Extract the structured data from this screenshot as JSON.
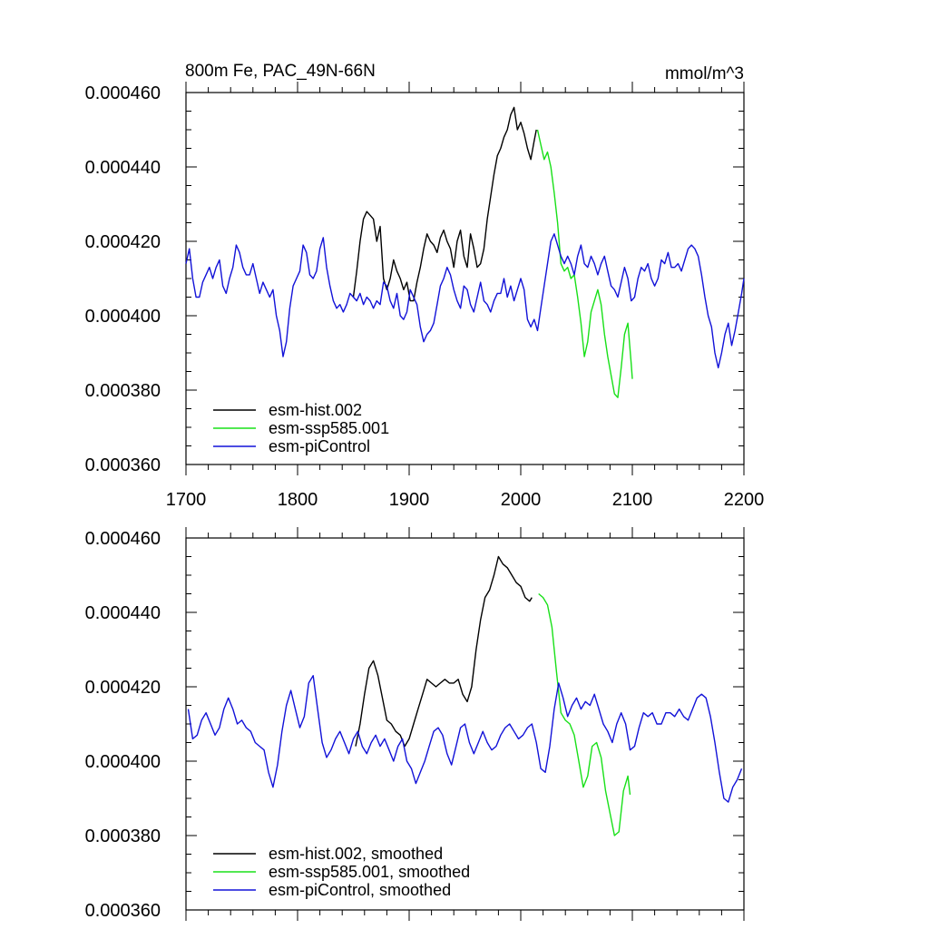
{
  "title": "800m Fe, PAC_49N-66N",
  "units": "mmol/m^3",
  "colors": {
    "hist": "#000000",
    "ssp": "#18e018",
    "pi": "#1212d8"
  },
  "chart_data": [
    {
      "type": "line",
      "panel": "top",
      "xlim": [
        1700,
        2200
      ],
      "ylim": [
        0.00036,
        0.00046
      ],
      "x_ticks": [
        "1700",
        "1800",
        "1900",
        "2000",
        "2100",
        "2200"
      ],
      "y_ticks": [
        "0.000360",
        "0.000380",
        "0.000400",
        "0.000420",
        "0.000440",
        "0.000460"
      ],
      "legend_position": "bottom-left",
      "series": [
        {
          "name": "esm-hist.002",
          "key": "hist",
          "x": [
            1850,
            1853,
            1856,
            1859,
            1862,
            1865,
            1868,
            1871,
            1874,
            1877,
            1880,
            1883,
            1886,
            1889,
            1892,
            1895,
            1898,
            1901,
            1904,
            1907,
            1910,
            1913,
            1916,
            1919,
            1922,
            1925,
            1928,
            1931,
            1934,
            1937,
            1940,
            1943,
            1946,
            1949,
            1952,
            1955,
            1958,
            1961,
            1964,
            1967,
            1970,
            1973,
            1976,
            1979,
            1982,
            1985,
            1988,
            1991,
            1994,
            1997,
            2000,
            2003,
            2006,
            2009,
            2012,
            2014
          ],
          "values": [
            0.000405,
            0.000412,
            0.00042,
            0.000426,
            0.000428,
            0.000427,
            0.000426,
            0.00042,
            0.000424,
            0.00041,
            0.000407,
            0.00041,
            0.000415,
            0.000412,
            0.00041,
            0.000407,
            0.000409,
            0.000404,
            0.000404,
            0.000409,
            0.000413,
            0.000418,
            0.000422,
            0.00042,
            0.000419,
            0.000417,
            0.000421,
            0.000423,
            0.00042,
            0.000418,
            0.000413,
            0.00042,
            0.000423,
            0.000416,
            0.000413,
            0.000422,
            0.000418,
            0.000413,
            0.000414,
            0.000418,
            0.000426,
            0.000432,
            0.000438,
            0.000443,
            0.000445,
            0.000448,
            0.00045,
            0.000454,
            0.000456,
            0.00045,
            0.000452,
            0.000449,
            0.000445,
            0.000442,
            0.000447,
            0.00045
          ]
        },
        {
          "name": "esm-ssp585.001",
          "key": "ssp",
          "x": [
            2015,
            2018,
            2021,
            2024,
            2027,
            2030,
            2033,
            2036,
            2039,
            2042,
            2045,
            2048,
            2051,
            2054,
            2057,
            2060,
            2063,
            2066,
            2069,
            2072,
            2075,
            2078,
            2081,
            2084,
            2087,
            2090,
            2093,
            2096,
            2099,
            2100
          ],
          "values": [
            0.00045,
            0.000446,
            0.000442,
            0.000444,
            0.00044,
            0.000433,
            0.000425,
            0.000414,
            0.000412,
            0.000413,
            0.00041,
            0.000411,
            0.000405,
            0.000398,
            0.000389,
            0.000393,
            0.000401,
            0.000404,
            0.000407,
            0.000403,
            0.000395,
            0.000389,
            0.000384,
            0.000379,
            0.000378,
            0.000386,
            0.000395,
            0.000398,
            0.000387,
            0.000383
          ]
        },
        {
          "name": "esm-piControl",
          "key": "pi",
          "x": [
            1700,
            1703,
            1706,
            1709,
            1712,
            1715,
            1718,
            1721,
            1724,
            1727,
            1730,
            1733,
            1736,
            1739,
            1742,
            1745,
            1748,
            1751,
            1754,
            1757,
            1760,
            1763,
            1766,
            1769,
            1772,
            1775,
            1778,
            1781,
            1784,
            1787,
            1790,
            1793,
            1796,
            1799,
            1802,
            1805,
            1808,
            1811,
            1814,
            1817,
            1820,
            1823,
            1826,
            1829,
            1832,
            1835,
            1838,
            1841,
            1844,
            1847,
            1850,
            1853,
            1856,
            1859,
            1862,
            1865,
            1868,
            1871,
            1874,
            1877,
            1880,
            1883,
            1886,
            1889,
            1892,
            1895,
            1898,
            1901,
            1904,
            1907,
            1910,
            1913,
            1916,
            1919,
            1922,
            1925,
            1928,
            1931,
            1934,
            1937,
            1940,
            1943,
            1946,
            1949,
            1952,
            1955,
            1958,
            1961,
            1964,
            1967,
            1970,
            1973,
            1976,
            1979,
            1982,
            1985,
            1988,
            1991,
            1994,
            1997,
            2000,
            2003,
            2006,
            2009,
            2012,
            2015,
            2018,
            2021,
            2024,
            2027,
            2030,
            2033,
            2036,
            2039,
            2042,
            2045,
            2048,
            2051,
            2054,
            2057,
            2060,
            2063,
            2066,
            2069,
            2072,
            2075,
            2078,
            2081,
            2084,
            2087,
            2090,
            2093,
            2096,
            2099,
            2102,
            2105,
            2108,
            2111,
            2114,
            2117,
            2120,
            2123,
            2126,
            2129,
            2132,
            2135,
            2138,
            2141,
            2144,
            2147,
            2150,
            2153,
            2156,
            2159,
            2162,
            2165,
            2168,
            2171,
            2174,
            2177,
            2180,
            2183,
            2186,
            2189,
            2192,
            2195,
            2198,
            2200
          ],
          "values": [
            0.000414,
            0.000418,
            0.00041,
            0.000405,
            0.000405,
            0.000409,
            0.000411,
            0.000413,
            0.00041,
            0.000413,
            0.000415,
            0.000408,
            0.000406,
            0.00041,
            0.000413,
            0.000419,
            0.000417,
            0.000413,
            0.000411,
            0.000411,
            0.000414,
            0.00041,
            0.000406,
            0.000409,
            0.000407,
            0.000405,
            0.000407,
            0.0004,
            0.000396,
            0.000389,
            0.000393,
            0.000402,
            0.000408,
            0.00041,
            0.000412,
            0.000419,
            0.000417,
            0.000411,
            0.00041,
            0.000412,
            0.000418,
            0.000421,
            0.000413,
            0.000408,
            0.000404,
            0.000402,
            0.000403,
            0.000401,
            0.000403,
            0.000406,
            0.000405,
            0.000404,
            0.000406,
            0.000403,
            0.000405,
            0.000404,
            0.000402,
            0.000404,
            0.000403,
            0.000409,
            0.000408,
            0.000404,
            0.000402,
            0.000406,
            0.0004,
            0.000399,
            0.000401,
            0.000407,
            0.000405,
            0.000403,
            0.000397,
            0.000393,
            0.000395,
            0.000396,
            0.000398,
            0.000403,
            0.000408,
            0.00041,
            0.000413,
            0.000411,
            0.000407,
            0.000404,
            0.000402,
            0.000408,
            0.000407,
            0.000403,
            0.000401,
            0.000405,
            0.000409,
            0.000404,
            0.000403,
            0.000401,
            0.000404,
            0.000406,
            0.000406,
            0.00041,
            0.000405,
            0.000408,
            0.000404,
            0.000407,
            0.00041,
            0.000407,
            0.000399,
            0.000397,
            0.000399,
            0.000396,
            0.000402,
            0.000408,
            0.000414,
            0.00042,
            0.000422,
            0.000419,
            0.000416,
            0.000414,
            0.000416,
            0.000414,
            0.000411,
            0.000416,
            0.000419,
            0.000414,
            0.000413,
            0.000416,
            0.000414,
            0.000411,
            0.000414,
            0.000416,
            0.000412,
            0.000408,
            0.000407,
            0.000405,
            0.000409,
            0.000413,
            0.00041,
            0.000404,
            0.000405,
            0.00041,
            0.000413,
            0.000412,
            0.000414,
            0.00041,
            0.000408,
            0.00041,
            0.000415,
            0.000414,
            0.000417,
            0.000413,
            0.000413,
            0.000414,
            0.000412,
            0.000415,
            0.000418,
            0.000419,
            0.000418,
            0.000416,
            0.000411,
            0.000405,
            0.0004,
            0.000397,
            0.00039,
            0.000386,
            0.00039,
            0.000395,
            0.000398,
            0.000392,
            0.000396,
            0.000401,
            0.000406,
            0.00041
          ]
        }
      ]
    },
    {
      "type": "line",
      "panel": "bottom",
      "xlim": [
        1700,
        2200
      ],
      "ylim": [
        0.00036,
        0.00046
      ],
      "y_ticks": [
        "0.000360",
        "0.000380",
        "0.000400",
        "0.000420",
        "0.000440",
        "0.000460"
      ],
      "legend_position": "bottom-left",
      "series": [
        {
          "name": "esm-hist.002, smoothed",
          "key": "hist",
          "x": [
            1852,
            1856,
            1860,
            1864,
            1868,
            1872,
            1876,
            1880,
            1884,
            1888,
            1892,
            1896,
            1900,
            1904,
            1908,
            1912,
            1916,
            1920,
            1924,
            1928,
            1932,
            1936,
            1940,
            1944,
            1948,
            1952,
            1956,
            1960,
            1964,
            1968,
            1972,
            1976,
            1980,
            1984,
            1988,
            1992,
            1996,
            2000,
            2004,
            2008,
            2010
          ],
          "values": [
            0.000404,
            0.00041,
            0.000418,
            0.000425,
            0.000427,
            0.000423,
            0.000417,
            0.000411,
            0.00041,
            0.000408,
            0.000407,
            0.000404,
            0.000406,
            0.00041,
            0.000414,
            0.000418,
            0.000422,
            0.000421,
            0.00042,
            0.000421,
            0.000422,
            0.000421,
            0.000421,
            0.000422,
            0.000418,
            0.000416,
            0.00042,
            0.00043,
            0.000438,
            0.000444,
            0.000446,
            0.00045,
            0.000455,
            0.000453,
            0.000452,
            0.00045,
            0.000448,
            0.000447,
            0.000444,
            0.000443,
            0.000444
          ]
        },
        {
          "name": "esm-ssp585.001, smoothed",
          "key": "ssp",
          "x": [
            2016,
            2020,
            2024,
            2028,
            2032,
            2036,
            2040,
            2044,
            2048,
            2052,
            2056,
            2060,
            2064,
            2068,
            2072,
            2076,
            2080,
            2084,
            2088,
            2092,
            2096,
            2098
          ],
          "values": [
            0.000445,
            0.000444,
            0.000442,
            0.000436,
            0.000424,
            0.000413,
            0.000411,
            0.00041,
            0.000407,
            0.0004,
            0.000393,
            0.000396,
            0.000404,
            0.000405,
            0.000401,
            0.000392,
            0.000386,
            0.00038,
            0.000381,
            0.000392,
            0.000396,
            0.000391
          ]
        },
        {
          "name": "esm-piControl, smoothed",
          "key": "pi",
          "x": [
            1702,
            1706,
            1710,
            1714,
            1718,
            1722,
            1726,
            1730,
            1734,
            1738,
            1742,
            1746,
            1750,
            1754,
            1758,
            1762,
            1766,
            1770,
            1774,
            1778,
            1782,
            1786,
            1790,
            1794,
            1798,
            1802,
            1806,
            1810,
            1814,
            1818,
            1822,
            1826,
            1830,
            1834,
            1838,
            1842,
            1846,
            1850,
            1854,
            1858,
            1862,
            1866,
            1870,
            1874,
            1878,
            1882,
            1886,
            1890,
            1894,
            1898,
            1902,
            1906,
            1910,
            1914,
            1918,
            1922,
            1926,
            1930,
            1934,
            1938,
            1942,
            1946,
            1950,
            1954,
            1958,
            1962,
            1966,
            1970,
            1974,
            1978,
            1982,
            1986,
            1990,
            1994,
            1998,
            2002,
            2006,
            2010,
            2014,
            2018,
            2022,
            2026,
            2030,
            2034,
            2038,
            2042,
            2046,
            2050,
            2054,
            2058,
            2062,
            2066,
            2070,
            2074,
            2078,
            2082,
            2086,
            2090,
            2094,
            2098,
            2102,
            2106,
            2110,
            2114,
            2118,
            2122,
            2126,
            2130,
            2134,
            2138,
            2142,
            2146,
            2150,
            2154,
            2158,
            2162,
            2166,
            2170,
            2174,
            2178,
            2182,
            2186,
            2190,
            2194,
            2198
          ],
          "values": [
            0.000414,
            0.000406,
            0.000407,
            0.000411,
            0.000413,
            0.00041,
            0.000407,
            0.000409,
            0.000414,
            0.000417,
            0.000414,
            0.00041,
            0.000411,
            0.000409,
            0.000408,
            0.000405,
            0.000404,
            0.000403,
            0.000397,
            0.000393,
            0.000399,
            0.000408,
            0.000415,
            0.000419,
            0.000414,
            0.000409,
            0.000412,
            0.000421,
            0.000423,
            0.000414,
            0.000405,
            0.000401,
            0.000403,
            0.000406,
            0.000408,
            0.000405,
            0.000402,
            0.000406,
            0.000408,
            0.000404,
            0.000402,
            0.000405,
            0.000407,
            0.000404,
            0.000406,
            0.000403,
            0.0004,
            0.000404,
            0.000406,
            0.0004,
            0.000398,
            0.000394,
            0.000397,
            0.0004,
            0.000404,
            0.000408,
            0.000409,
            0.000407,
            0.000402,
            0.000399,
            0.000404,
            0.000409,
            0.00041,
            0.000405,
            0.000402,
            0.000405,
            0.000408,
            0.000405,
            0.000403,
            0.000404,
            0.000407,
            0.000409,
            0.00041,
            0.000408,
            0.000406,
            0.000407,
            0.000409,
            0.00041,
            0.000405,
            0.000398,
            0.000397,
            0.000404,
            0.000414,
            0.000421,
            0.000417,
            0.000412,
            0.000415,
            0.000417,
            0.000414,
            0.000416,
            0.000415,
            0.000418,
            0.000414,
            0.00041,
            0.000408,
            0.000405,
            0.00041,
            0.000413,
            0.00041,
            0.000403,
            0.000404,
            0.000409,
            0.000413,
            0.000412,
            0.000413,
            0.00041,
            0.00041,
            0.000413,
            0.000413,
            0.000412,
            0.000414,
            0.000412,
            0.000411,
            0.000414,
            0.000417,
            0.000418,
            0.000417,
            0.000412,
            0.000405,
            0.000397,
            0.00039,
            0.000389,
            0.000393,
            0.000395,
            0.000398
          ]
        }
      ]
    }
  ]
}
